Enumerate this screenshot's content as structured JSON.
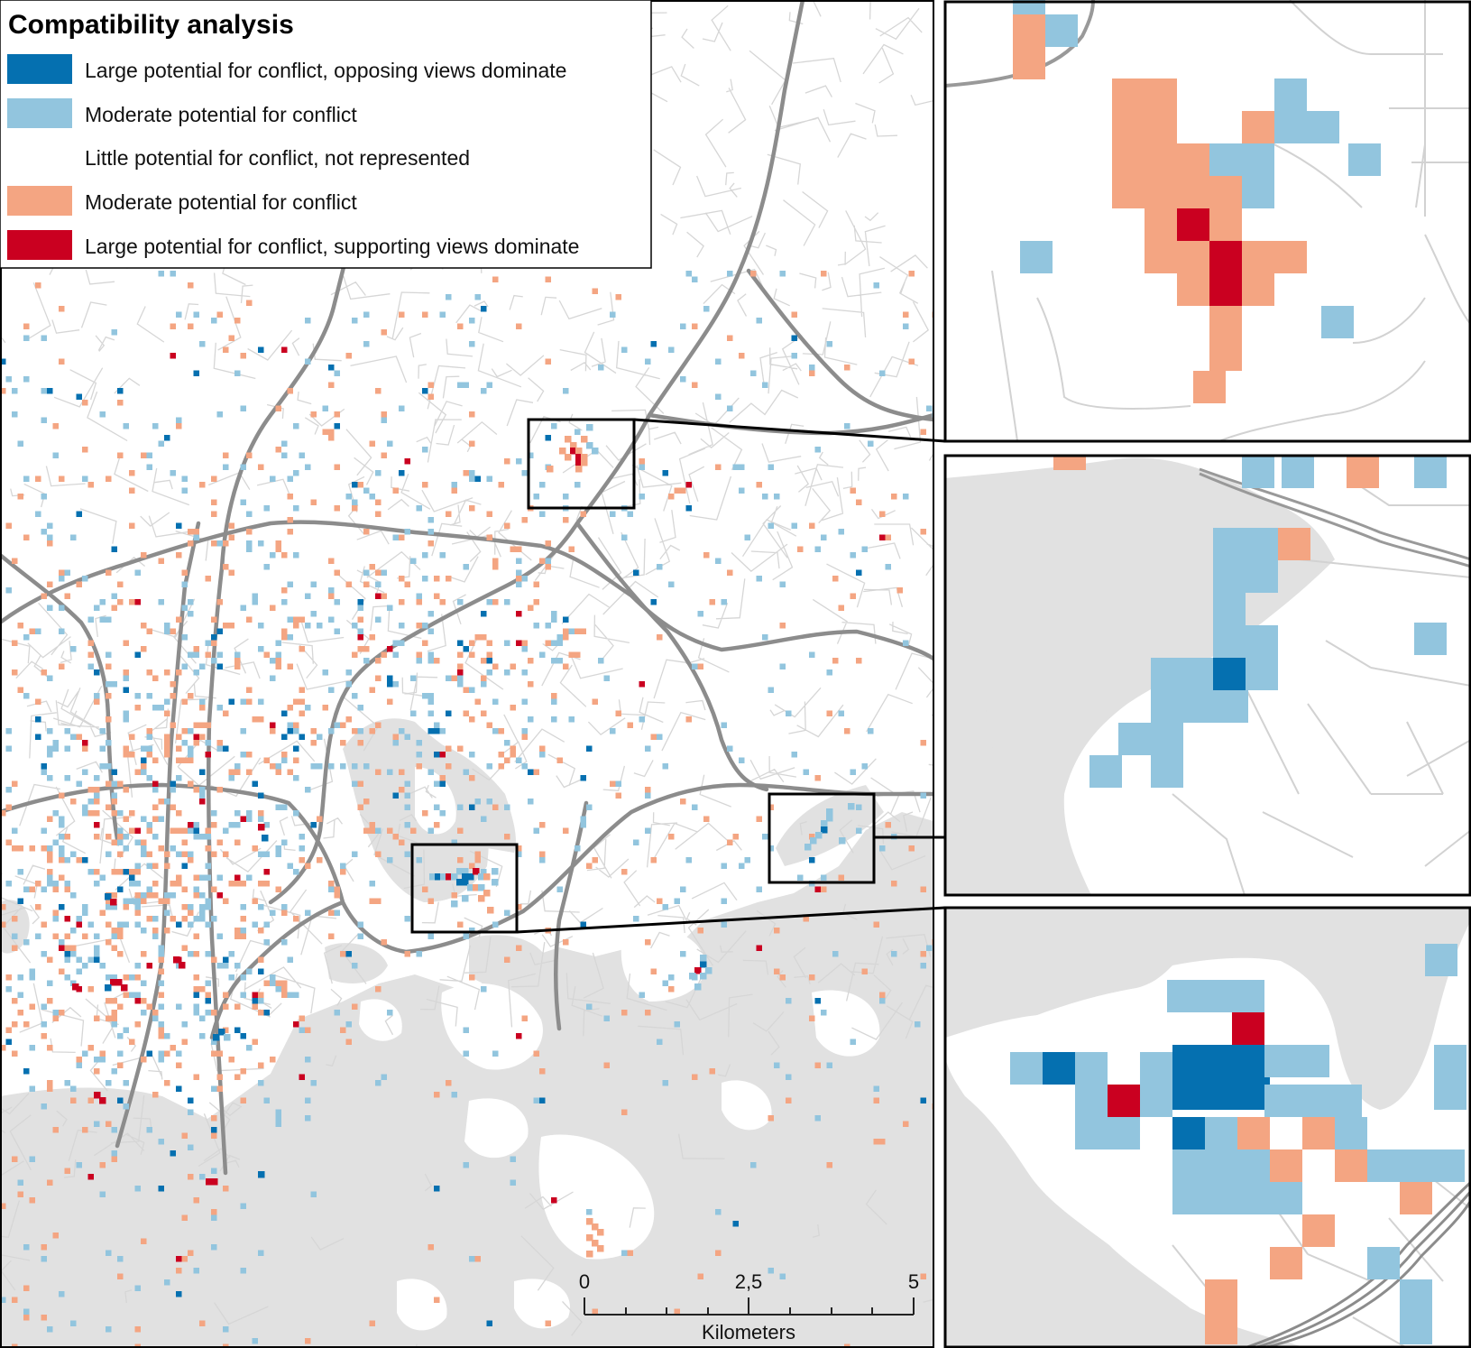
{
  "legend": {
    "title": "Compatibility analysis",
    "items": [
      {
        "label": "Large potential for conflict, opposing views dominate",
        "color": "#0570b0"
      },
      {
        "label": "Moderate potential for conflict",
        "color": "#92c5de"
      },
      {
        "label": "Little potential for conflict, not represented",
        "color": ""
      },
      {
        "label": "Moderate potential for conflict",
        "color": "#f4a582"
      },
      {
        "label": "Large potential for conflict, supporting views dominate",
        "color": "#ca0020"
      }
    ]
  },
  "scale_bar": {
    "ticks": [
      "0",
      "2,5",
      "5"
    ],
    "unit": "Kilometers"
  },
  "colors": {
    "water": "#e1e1e1",
    "road_minor": "#d6d6d6",
    "road_major": "#8a8a8a",
    "frame": "#000000"
  }
}
